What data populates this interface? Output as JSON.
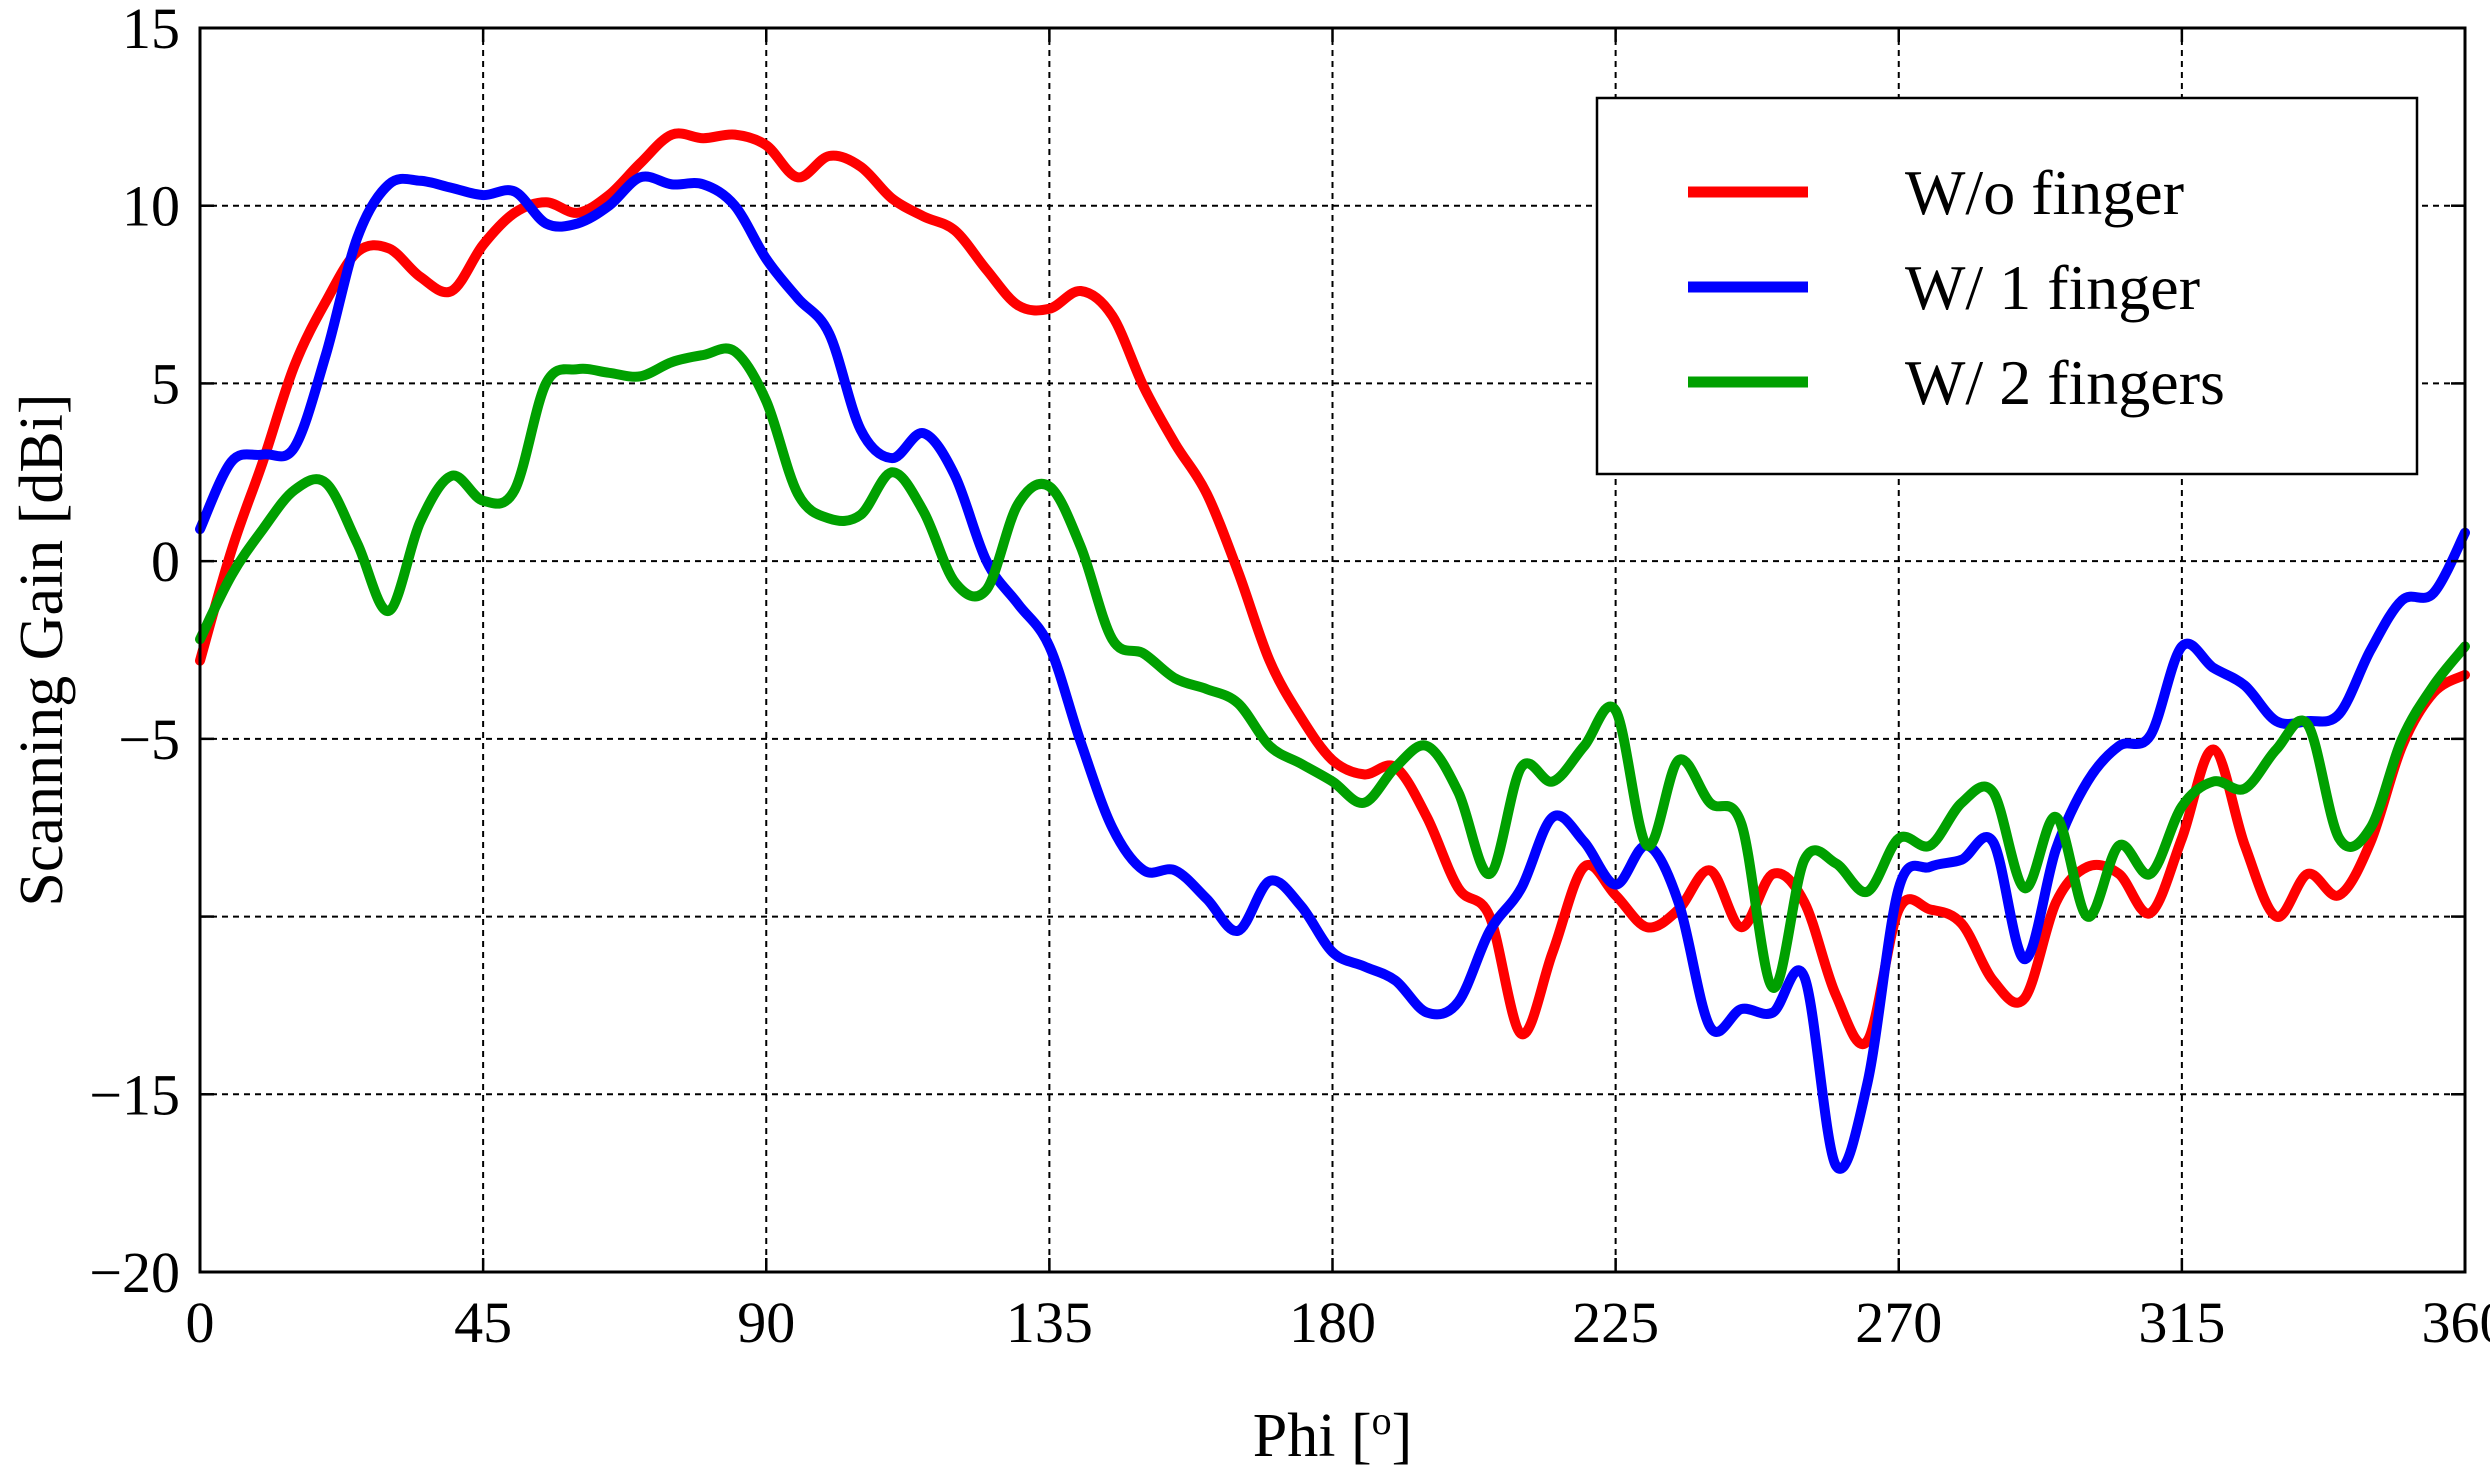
{
  "chart_data": {
    "type": "line",
    "title": "",
    "xlabel": "Phi [",
    "xlabel_sup": "o",
    "xlabel_suffix": "]",
    "ylabel": "Scanning Gain [dBi]",
    "xlim": [
      0,
      360
    ],
    "ylim": [
      -20,
      15
    ],
    "xticks": [
      0,
      45,
      90,
      135,
      180,
      225,
      270,
      315,
      360
    ],
    "xtick_labels": [
      "0",
      "45",
      "90",
      "135",
      "180",
      "225",
      "270",
      "315",
      "360"
    ],
    "yticks": [
      15,
      10,
      5,
      0,
      -5,
      -10,
      -15,
      -20
    ],
    "ytick_labels": [
      "15",
      "10",
      "5",
      "0",
      "−5",
      "",
      "−15",
      "−20"
    ],
    "grid": true,
    "legend_position": "top-right",
    "series": [
      {
        "name": "W/o finger",
        "color": "#ff0000",
        "x": [
          0,
          5,
          10,
          15,
          20,
          25,
          30,
          35,
          40,
          45,
          50,
          55,
          60,
          65,
          70,
          75,
          80,
          85,
          90,
          95,
          100,
          105,
          110,
          115,
          120,
          125,
          130,
          135,
          140,
          145,
          150,
          155,
          160,
          165,
          170,
          175,
          180,
          185,
          190,
          195,
          200,
          205,
          210,
          215,
          220,
          225,
          230,
          235,
          240,
          245,
          250,
          255,
          260,
          265,
          270,
          275,
          280,
          285,
          290,
          295,
          300,
          305,
          310,
          315,
          320,
          325,
          330,
          335,
          340,
          345,
          350,
          355,
          360
        ],
        "y": [
          -2.8,
          0.3,
          2.8,
          5.5,
          7.3,
          8.7,
          8.8,
          8.0,
          7.6,
          8.9,
          9.8,
          10.1,
          9.8,
          10.3,
          11.2,
          12.0,
          11.9,
          12.0,
          11.7,
          10.8,
          11.4,
          11.1,
          10.2,
          9.7,
          9.3,
          8.2,
          7.2,
          7.1,
          7.6,
          6.9,
          4.9,
          3.3,
          1.9,
          -0.3,
          -2.8,
          -4.4,
          -5.6,
          -6.0,
          -5.8,
          -7.2,
          -9.2,
          -10.0,
          -13.3,
          -11.0,
          -8.6,
          -9.4,
          -10.3,
          -9.8,
          -8.7,
          -10.3,
          -8.8,
          -9.6,
          -12.2,
          -13.5,
          -9.8,
          -9.8,
          -10.2,
          -11.8,
          -12.3,
          -9.6,
          -8.6,
          -8.8,
          -9.9,
          -7.8,
          -5.3,
          -8.0,
          -10.0,
          -8.8,
          -9.4,
          -7.9,
          -5.2,
          -3.7,
          -3.2
        ]
      },
      {
        "name": "W/ 1 finger",
        "color": "#0000ff",
        "x": [
          0,
          5,
          10,
          15,
          20,
          25,
          30,
          35,
          40,
          45,
          50,
          55,
          60,
          65,
          70,
          75,
          80,
          85,
          90,
          95,
          100,
          105,
          110,
          115,
          120,
          125,
          130,
          135,
          140,
          145,
          150,
          155,
          160,
          165,
          170,
          175,
          180,
          185,
          190,
          195,
          200,
          205,
          210,
          215,
          220,
          225,
          230,
          235,
          240,
          245,
          250,
          255,
          260,
          265,
          270,
          275,
          280,
          285,
          290,
          295,
          300,
          305,
          310,
          315,
          320,
          325,
          330,
          335,
          340,
          345,
          350,
          355,
          360
        ],
        "y": [
          0.9,
          2.8,
          3.0,
          3.2,
          5.8,
          9.1,
          10.6,
          10.7,
          10.5,
          10.3,
          10.4,
          9.5,
          9.5,
          10.0,
          10.8,
          10.6,
          10.6,
          10.0,
          8.5,
          7.4,
          6.4,
          3.7,
          2.9,
          3.6,
          2.4,
          0.0,
          -1.2,
          -2.4,
          -5.1,
          -7.5,
          -8.7,
          -8.7,
          -9.5,
          -10.4,
          -9.0,
          -9.7,
          -11.0,
          -11.4,
          -11.8,
          -12.7,
          -12.4,
          -10.4,
          -9.2,
          -7.2,
          -7.9,
          -9.1,
          -8.0,
          -9.6,
          -13.1,
          -12.6,
          -12.7,
          -11.7,
          -17.0,
          -14.7,
          -9.2,
          -8.6,
          -8.4,
          -7.9,
          -11.2,
          -8.1,
          -6.2,
          -5.2,
          -4.9,
          -2.4,
          -3.0,
          -3.5,
          -4.5,
          -4.5,
          -4.3,
          -2.5,
          -1.1,
          -0.9,
          0.8
        ]
      },
      {
        "name": "W/ 2 fingers",
        "color": "#00a000",
        "x": [
          0,
          5,
          10,
          15,
          20,
          25,
          30,
          35,
          40,
          45,
          50,
          55,
          60,
          65,
          70,
          75,
          80,
          85,
          90,
          95,
          100,
          105,
          110,
          115,
          120,
          125,
          130,
          135,
          140,
          145,
          150,
          155,
          160,
          165,
          170,
          175,
          180,
          185,
          190,
          195,
          200,
          205,
          210,
          215,
          220,
          225,
          230,
          235,
          240,
          245,
          250,
          255,
          260,
          265,
          270,
          275,
          280,
          285,
          290,
          295,
          300,
          305,
          310,
          315,
          320,
          325,
          330,
          335,
          340,
          345,
          350,
          355,
          360
        ],
        "y": [
          -2.2,
          -0.4,
          0.9,
          2.0,
          2.2,
          0.5,
          -1.4,
          1.1,
          2.4,
          1.7,
          2.0,
          5.0,
          5.4,
          5.3,
          5.2,
          5.6,
          5.8,
          5.9,
          4.5,
          1.9,
          1.2,
          1.3,
          2.5,
          1.4,
          -0.6,
          -0.8,
          1.6,
          2.1,
          0.4,
          -2.2,
          -2.6,
          -3.3,
          -3.6,
          -4.0,
          -5.2,
          -5.7,
          -6.2,
          -6.8,
          -5.8,
          -5.2,
          -6.5,
          -8.8,
          -5.8,
          -6.2,
          -5.2,
          -4.2,
          -8.0,
          -5.6,
          -6.8,
          -7.4,
          -12.0,
          -8.4,
          -8.5,
          -9.3,
          -7.8,
          -8.0,
          -6.8,
          -6.5,
          -9.2,
          -7.2,
          -10.0,
          -8.0,
          -8.8,
          -6.9,
          -6.2,
          -6.4,
          -5.3,
          -4.6,
          -7.8,
          -7.5,
          -5.0,
          -3.5,
          -2.4
        ]
      }
    ]
  }
}
